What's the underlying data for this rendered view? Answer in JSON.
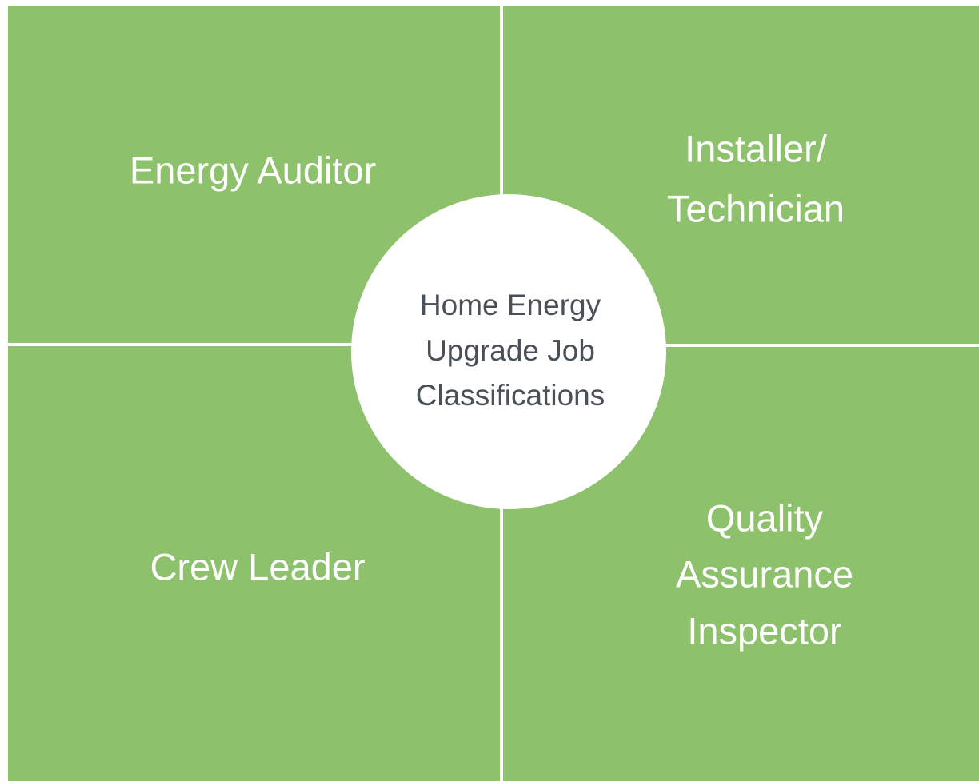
{
  "center": {
    "lines": [
      "Home Energy",
      "Upgrade Job",
      "Classifications"
    ]
  },
  "nodes": [
    {
      "lines": [
        "Energy Auditor"
      ]
    },
    {
      "lines": [
        "Installer/",
        "Technician"
      ]
    },
    {
      "lines": [
        "Crew Leader"
      ]
    },
    {
      "lines": [
        "Quality",
        "Assurance",
        "Inspector"
      ]
    }
  ]
}
